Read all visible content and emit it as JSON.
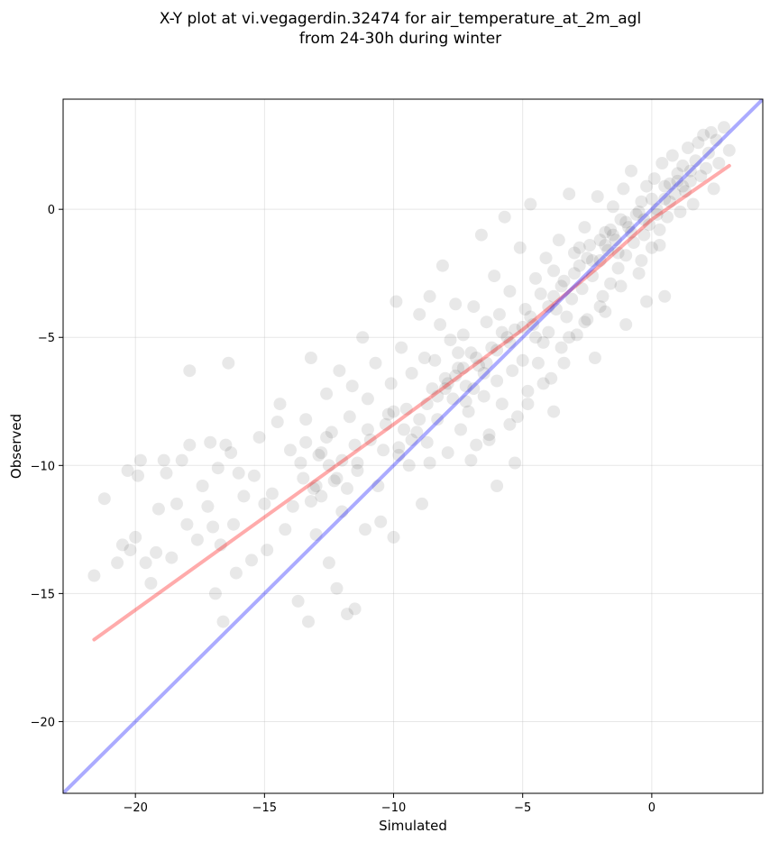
{
  "chart_data": {
    "type": "scatter",
    "title_lines": [
      "X-Y plot at vi.vegagerdin.32474 for air_temperature_at_2m_agl",
      "from 24-30h during winter"
    ],
    "xlabel": "Simulated",
    "ylabel": "Observed",
    "xlim": [
      -22.8,
      4.3
    ],
    "ylim": [
      -22.8,
      4.3
    ],
    "x_ticks": [
      -20,
      -15,
      -10,
      -5,
      0
    ],
    "y_ticks": [
      -20,
      -15,
      -10,
      -5,
      0
    ],
    "x_tick_labels": [
      "−20",
      "−15",
      "−10",
      "−5",
      "0"
    ],
    "y_tick_labels": [
      "−20",
      "−15",
      "−10",
      "−5",
      "0"
    ],
    "grid": true,
    "point_color": "#000000",
    "point_alpha": 0.09,
    "identity_line": {
      "color": "#0000ff",
      "points": [
        [
          -22.8,
          -22.8
        ],
        [
          4.3,
          4.3
        ]
      ]
    },
    "fit_line": {
      "color": "#ff0000",
      "points": [
        [
          -21.6,
          -16.8
        ],
        [
          -10,
          -8.4
        ],
        [
          -5,
          -4.7
        ],
        [
          -2,
          -2.2
        ],
        [
          0,
          -0.4
        ],
        [
          3,
          1.7
        ]
      ]
    },
    "series": [
      {
        "points": [
          [
            -21.6,
            -14.3
          ],
          [
            -21.2,
            -11.3
          ],
          [
            -20.7,
            -13.8
          ],
          [
            -20.5,
            -13.1
          ],
          [
            -20.3,
            -10.2
          ],
          [
            -20.2,
            -13.3
          ],
          [
            -20.0,
            -12.8
          ],
          [
            -19.9,
            -10.4
          ],
          [
            -19.8,
            -9.8
          ],
          [
            -19.6,
            -13.8
          ],
          [
            -19.4,
            -14.6
          ],
          [
            -19.2,
            -13.4
          ],
          [
            -19.1,
            -11.7
          ],
          [
            -18.9,
            -9.8
          ],
          [
            -18.8,
            -10.3
          ],
          [
            -18.6,
            -13.6
          ],
          [
            -18.4,
            -11.5
          ],
          [
            -18.2,
            -9.8
          ],
          [
            -18.0,
            -12.3
          ],
          [
            -17.9,
            -9.2
          ],
          [
            -17.9,
            -6.3
          ],
          [
            -17.6,
            -12.9
          ],
          [
            -17.4,
            -10.8
          ],
          [
            -17.2,
            -11.6
          ],
          [
            -17.1,
            -9.1
          ],
          [
            -17.0,
            -12.4
          ],
          [
            -16.9,
            -15.0
          ],
          [
            -16.8,
            -10.1
          ],
          [
            -16.7,
            -13.1
          ],
          [
            -16.6,
            -16.1
          ],
          [
            -16.5,
            -9.2
          ],
          [
            -16.4,
            -6.0
          ],
          [
            -16.3,
            -9.5
          ],
          [
            -16.2,
            -12.3
          ],
          [
            -16.1,
            -14.2
          ],
          [
            -16.0,
            -10.3
          ],
          [
            -15.8,
            -11.2
          ],
          [
            -15.5,
            -13.7
          ],
          [
            -15.4,
            -10.4
          ],
          [
            -15.2,
            -8.9
          ],
          [
            -15.0,
            -11.5
          ],
          [
            -14.9,
            -13.3
          ],
          [
            -14.7,
            -11.1
          ],
          [
            -14.5,
            -8.3
          ],
          [
            -14.4,
            -7.6
          ],
          [
            -14.2,
            -12.5
          ],
          [
            -14.0,
            -9.4
          ],
          [
            -13.9,
            -11.6
          ],
          [
            -13.7,
            -15.3
          ],
          [
            -13.6,
            -9.9
          ],
          [
            -13.5,
            -10.5
          ],
          [
            -13.4,
            -8.2
          ],
          [
            -13.3,
            -16.1
          ],
          [
            -13.2,
            -5.8
          ],
          [
            -13.1,
            -10.9
          ],
          [
            -13.0,
            -12.7
          ],
          [
            -12.9,
            -9.6
          ],
          [
            -12.8,
            -11.2
          ],
          [
            -12.6,
            -7.2
          ],
          [
            -12.5,
            -13.8
          ],
          [
            -12.4,
            -8.7
          ],
          [
            -12.3,
            -10.6
          ],
          [
            -12.2,
            -14.8
          ],
          [
            -12.1,
            -6.3
          ],
          [
            -12.0,
            -11.8
          ],
          [
            -11.8,
            -15.8
          ],
          [
            -11.7,
            -8.1
          ],
          [
            -11.6,
            -6.9
          ],
          [
            -11.5,
            -15.6
          ],
          [
            -11.4,
            -10.2
          ],
          [
            -11.2,
            -5.0
          ],
          [
            -11.1,
            -12.5
          ],
          [
            -11.0,
            -7.4
          ],
          [
            -10.9,
            -9.0
          ],
          [
            -10.7,
            -6.0
          ],
          [
            -10.6,
            -10.8
          ],
          [
            -10.5,
            -12.2
          ],
          [
            -10.3,
            -8.4
          ],
          [
            -10.1,
            -6.8
          ],
          [
            -10.0,
            -12.8
          ],
          [
            -9.9,
            -3.6
          ],
          [
            -9.8,
            -9.3
          ],
          [
            -9.7,
            -5.4
          ],
          [
            -9.5,
            -7.8
          ],
          [
            -9.4,
            -10.0
          ],
          [
            -9.3,
            -6.4
          ],
          [
            -9.1,
            -8.7
          ],
          [
            -9.0,
            -4.1
          ],
          [
            -8.9,
            -11.5
          ],
          [
            -8.8,
            -5.8
          ],
          [
            -8.7,
            -9.1
          ],
          [
            -8.6,
            -3.4
          ],
          [
            -8.5,
            -7.0
          ],
          [
            -8.4,
            -5.9
          ],
          [
            -8.3,
            -8.2
          ],
          [
            -8.2,
            -4.5
          ],
          [
            -8.1,
            -2.2
          ],
          [
            -8.0,
            -6.6
          ],
          [
            -7.9,
            -9.5
          ],
          [
            -7.8,
            -5.1
          ],
          [
            -7.7,
            -7.4
          ],
          [
            -7.6,
            -3.7
          ],
          [
            -7.5,
            -6.2
          ],
          [
            -7.4,
            -8.6
          ],
          [
            -7.3,
            -4.9
          ],
          [
            -7.2,
            -6.9
          ],
          [
            -7.1,
            -7.9
          ],
          [
            -7.0,
            -5.6
          ],
          [
            -6.9,
            -3.8
          ],
          [
            -6.8,
            -9.2
          ],
          [
            -6.7,
            -6.1
          ],
          [
            -6.6,
            -1.0
          ],
          [
            -6.5,
            -7.3
          ],
          [
            -6.4,
            -4.4
          ],
          [
            -6.3,
            -8.8
          ],
          [
            -6.2,
            -5.4
          ],
          [
            -6.1,
            -2.6
          ],
          [
            -6.0,
            -6.7
          ],
          [
            -5.9,
            -4.1
          ],
          [
            -5.8,
            -7.6
          ],
          [
            -5.7,
            -0.3
          ],
          [
            -5.6,
            -5.0
          ],
          [
            -5.5,
            -3.2
          ],
          [
            -5.4,
            -6.3
          ],
          [
            -5.3,
            -4.7
          ],
          [
            -5.2,
            -8.1
          ],
          [
            -5.1,
            -1.5
          ],
          [
            -5.0,
            -5.9
          ],
          [
            -4.9,
            -3.9
          ],
          [
            -4.8,
            -7.1
          ],
          [
            -4.7,
            0.2
          ],
          [
            -4.6,
            -4.5
          ],
          [
            -4.5,
            -2.7
          ],
          [
            -4.4,
            -6.0
          ],
          [
            -4.3,
            -3.3
          ],
          [
            -4.2,
            -5.2
          ],
          [
            -4.1,
            -1.9
          ],
          [
            -4.0,
            -4.8
          ],
          [
            -3.9,
            -6.6
          ],
          [
            -3.8,
            -2.4
          ],
          [
            -3.7,
            -3.9
          ],
          [
            -3.6,
            -1.2
          ],
          [
            -3.5,
            -5.4
          ],
          [
            -3.4,
            -2.8
          ],
          [
            -3.3,
            -4.2
          ],
          [
            -3.2,
            0.6
          ],
          [
            -3.1,
            -3.5
          ],
          [
            -3.0,
            -1.7
          ],
          [
            -2.9,
            -4.9
          ],
          [
            -2.8,
            -2.2
          ],
          [
            -2.7,
            -3.1
          ],
          [
            -2.6,
            -0.7
          ],
          [
            -2.5,
            -4.3
          ],
          [
            -2.4,
            -1.4
          ],
          [
            -2.3,
            -2.6
          ],
          [
            -2.2,
            -5.8
          ],
          [
            -2.1,
            0.5
          ],
          [
            -2.0,
            -2.0
          ],
          [
            -1.9,
            -3.4
          ],
          [
            -1.8,
            -0.9
          ],
          [
            -1.7,
            -1.6
          ],
          [
            -1.6,
            -2.9
          ],
          [
            -1.5,
            0.1
          ],
          [
            -1.4,
            -1.2
          ],
          [
            -1.3,
            -2.3
          ],
          [
            -1.2,
            -0.4
          ],
          [
            -1.1,
            0.8
          ],
          [
            -1.0,
            -1.8
          ],
          [
            -0.9,
            -0.7
          ],
          [
            -0.8,
            1.5
          ],
          [
            -0.7,
            -1.3
          ],
          [
            -0.6,
            -0.2
          ],
          [
            -0.5,
            -2.5
          ],
          [
            -0.4,
            0.3
          ],
          [
            -0.3,
            -1.0
          ],
          [
            -0.2,
            0.9
          ],
          [
            -0.1,
            -0.6
          ],
          [
            0.0,
            -1.5
          ],
          [
            0.1,
            1.2
          ],
          [
            0.2,
            0.0
          ],
          [
            0.3,
            -0.8
          ],
          [
            0.4,
            1.8
          ],
          [
            0.5,
            0.4
          ],
          [
            0.6,
            -0.3
          ],
          [
            0.7,
            1.0
          ],
          [
            0.8,
            2.1
          ],
          [
            0.9,
            0.6
          ],
          [
            1.0,
            1.4
          ],
          [
            1.1,
            -0.1
          ],
          [
            1.2,
            1.7
          ],
          [
            1.3,
            0.7
          ],
          [
            1.4,
            2.4
          ],
          [
            1.5,
            1.1
          ],
          [
            1.6,
            0.2
          ],
          [
            1.7,
            1.9
          ],
          [
            1.8,
            2.6
          ],
          [
            1.9,
            1.3
          ],
          [
            2.0,
            2.9
          ],
          [
            2.1,
            1.6
          ],
          [
            2.2,
            2.2
          ],
          [
            2.3,
            3.0
          ],
          [
            2.4,
            0.8
          ],
          [
            2.5,
            2.7
          ],
          [
            2.6,
            1.8
          ],
          [
            2.8,
            3.2
          ],
          [
            3.0,
            2.3
          ],
          [
            -8.0,
            -7.0
          ],
          [
            -7.6,
            -6.5
          ],
          [
            -7.3,
            -6.2
          ],
          [
            -7.9,
            -6.8
          ],
          [
            -7.2,
            -7.5
          ],
          [
            -6.8,
            -5.8
          ],
          [
            -6.5,
            -6.4
          ],
          [
            -8.3,
            -7.3
          ],
          [
            -7.5,
            -5.6
          ],
          [
            -6.9,
            -7.0
          ],
          [
            -9.0,
            -8.2
          ],
          [
            -9.3,
            -9.0
          ],
          [
            -10.0,
            -7.9
          ],
          [
            -9.6,
            -8.6
          ],
          [
            -8.7,
            -7.6
          ],
          [
            -10.4,
            -9.4
          ],
          [
            -11.0,
            -8.6
          ],
          [
            -10.2,
            -8.0
          ],
          [
            -9.8,
            -9.6
          ],
          [
            -11.5,
            -9.2
          ],
          [
            -12.5,
            -10.0
          ],
          [
            -12.8,
            -9.5
          ],
          [
            -13.0,
            -10.8
          ],
          [
            -12.2,
            -10.5
          ],
          [
            -13.4,
            -9.1
          ],
          [
            -12.0,
            -9.8
          ],
          [
            -11.8,
            -10.9
          ],
          [
            -13.2,
            -11.4
          ],
          [
            -12.6,
            -8.9
          ],
          [
            -11.4,
            -9.9
          ],
          [
            -3.0,
            -2.5
          ],
          [
            -2.5,
            -1.9
          ],
          [
            -2.0,
            -1.2
          ],
          [
            -1.5,
            -1.0
          ],
          [
            -1.0,
            -0.5
          ],
          [
            -0.5,
            -0.1
          ],
          [
            0.0,
            0.4
          ],
          [
            0.5,
            0.9
          ],
          [
            1.0,
            1.1
          ],
          [
            1.5,
            1.5
          ],
          [
            -2.8,
            -1.5
          ],
          [
            -2.3,
            -2.0
          ],
          [
            -1.8,
            -1.4
          ],
          [
            -1.3,
            -1.7
          ],
          [
            -0.8,
            -0.9
          ],
          [
            -0.3,
            -0.4
          ],
          [
            0.2,
            -0.2
          ],
          [
            0.7,
            0.3
          ],
          [
            1.2,
            0.9
          ],
          [
            -1.6,
            -0.8
          ],
          [
            -5.5,
            -5.2
          ],
          [
            -5.0,
            -4.6
          ],
          [
            -4.5,
            -5.0
          ],
          [
            -6.0,
            -5.5
          ],
          [
            -4.0,
            -3.8
          ],
          [
            -3.5,
            -3.0
          ],
          [
            -6.4,
            -6.0
          ],
          [
            -5.8,
            -4.8
          ],
          [
            -4.7,
            -4.2
          ],
          [
            -3.8,
            -3.4
          ],
          [
            -2.0,
            -3.8
          ],
          [
            -1.2,
            -3.0
          ],
          [
            -0.4,
            -2.0
          ],
          [
            0.3,
            -1.4
          ],
          [
            -2.6,
            -4.4
          ],
          [
            -1.8,
            -4.0
          ],
          [
            -3.2,
            -5.0
          ],
          [
            0.5,
            -3.4
          ],
          [
            -1.0,
            -4.5
          ],
          [
            -0.2,
            -3.6
          ],
          [
            -7.0,
            -9.8
          ],
          [
            -6.3,
            -9.0
          ],
          [
            -5.5,
            -8.4
          ],
          [
            -4.8,
            -7.6
          ],
          [
            -4.2,
            -6.8
          ],
          [
            -3.4,
            -6.0
          ],
          [
            -8.6,
            -9.9
          ],
          [
            -6.0,
            -10.8
          ],
          [
            -5.3,
            -9.9
          ],
          [
            -3.8,
            -7.9
          ]
        ]
      }
    ]
  }
}
